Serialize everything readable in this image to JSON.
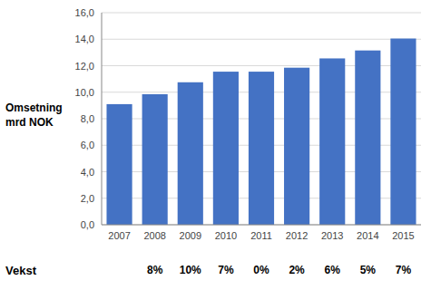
{
  "chart_data": {
    "type": "bar",
    "categories": [
      "2007",
      "2008",
      "2009",
      "2010",
      "2011",
      "2012",
      "2013",
      "2014",
      "2015"
    ],
    "values": [
      9.1,
      9.85,
      10.75,
      11.55,
      11.55,
      11.85,
      12.55,
      13.15,
      14.05
    ],
    "color": "#4472C4",
    "y_label": [
      "Omsetning",
      "mrd NOK"
    ],
    "growth_title": "Vekst",
    "growth_labels": [
      null,
      "8%",
      "10%",
      "7%",
      "0%",
      "2%",
      "6%",
      "5%",
      "7%"
    ],
    "ylim": [
      0,
      16
    ],
    "yticks": [
      {
        "value": 0.0,
        "label": "0,0"
      },
      {
        "value": 2.0,
        "label": "2,0"
      },
      {
        "value": 4.0,
        "label": "4,0"
      },
      {
        "value": 6.0,
        "label": "6,0"
      },
      {
        "value": 8.0,
        "label": "8,0"
      },
      {
        "value": 10.0,
        "label": "10,0"
      },
      {
        "value": 12.0,
        "label": "12,0"
      },
      {
        "value": 14.0,
        "label": "14,0"
      },
      {
        "value": 16.0,
        "label": "16,0"
      }
    ],
    "grid": true
  }
}
